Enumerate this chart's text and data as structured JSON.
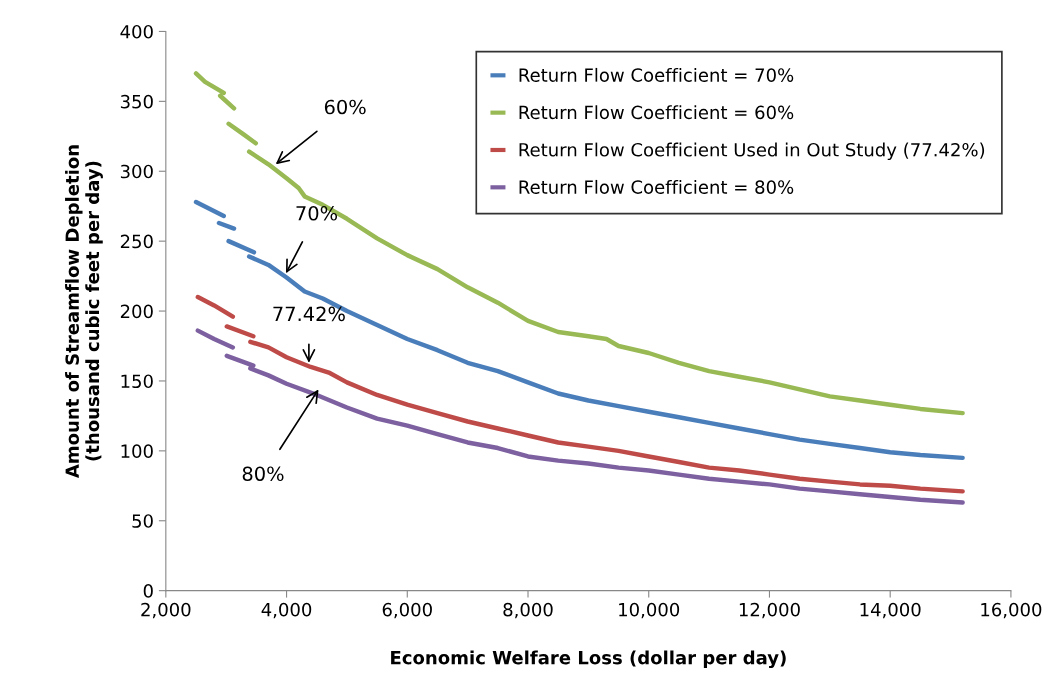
{
  "chart_data": {
    "type": "line",
    "xlabel": "Economic Welfare Loss (dollar per day)",
    "ylabel": "Amount of Streamflow Depletion\n(thousand cubic feet per day)",
    "xlim": [
      2000,
      16000
    ],
    "xticks": [
      {
        "value": 2000,
        "label": "2,000"
      },
      {
        "value": 4000,
        "label": "4,000"
      },
      {
        "value": 6000,
        "label": "6,000"
      },
      {
        "value": 8000,
        "label": "8,000"
      },
      {
        "value": 10000,
        "label": "10,000"
      },
      {
        "value": 12000,
        "label": "12,000"
      },
      {
        "value": 14000,
        "label": "14,000"
      },
      {
        "value": 16000,
        "label": "16,000"
      }
    ],
    "ylim": [
      0,
      400
    ],
    "yticks": [
      0,
      50,
      100,
      150,
      200,
      250,
      300,
      350,
      400
    ],
    "grid": false,
    "legend": "top right",
    "line_style": "solid",
    "marker": "none",
    "series": [
      {
        "name": "Return Flow Coefficient = 70%",
        "color": "#4a7ebb",
        "x": [
          2500,
          2960,
          null,
          2880,
          3130,
          null,
          3040,
          3460,
          null,
          3380,
          3700,
          4000,
          4300,
          4600,
          5000,
          5500,
          6000,
          6500,
          7000,
          7500,
          8000,
          8500,
          9000,
          9500,
          10000,
          10500,
          11000,
          11500,
          12000,
          12500,
          13000,
          13500,
          14000,
          14500,
          15200
        ],
        "values": [
          278,
          268,
          null,
          263,
          259,
          null,
          250,
          242,
          null,
          239,
          233,
          224,
          214,
          209,
          200,
          190,
          180,
          172,
          163,
          157,
          149,
          141,
          136,
          132,
          128,
          124,
          120,
          116,
          112,
          108,
          105,
          102,
          99,
          97,
          95
        ]
      },
      {
        "name": "Return Flow Coefficient = 60%",
        "color": "#98b954",
        "x": [
          2500,
          2650,
          2960,
          null,
          2900,
          3130,
          null,
          3040,
          3300,
          3490,
          null,
          3380,
          3700,
          4000,
          4200,
          4300,
          4600,
          5000,
          5500,
          6000,
          6500,
          7000,
          7500,
          8000,
          8500,
          9000,
          9300,
          9500,
          10000,
          10500,
          11000,
          11500,
          12000,
          12500,
          13000,
          13500,
          14000,
          14500,
          15200
        ],
        "values": [
          370,
          364,
          356,
          null,
          354,
          345,
          null,
          334,
          326,
          320,
          null,
          314,
          305,
          295,
          288,
          282,
          276,
          266,
          252,
          240,
          230,
          217,
          206,
          193,
          185,
          182,
          180,
          175,
          170,
          163,
          157,
          153,
          149,
          144,
          139,
          136,
          133,
          130,
          127
        ]
      },
      {
        "name": "Return Flow Coefficient Used in Out Study (77.42%)",
        "color": "#be4b48",
        "x": [
          2530,
          2800,
          3110,
          null,
          3010,
          3450,
          null,
          3400,
          3700,
          4000,
          4400,
          4700,
          5000,
          5500,
          6000,
          6500,
          7000,
          7500,
          8000,
          8500,
          9000,
          9500,
          10000,
          10500,
          11000,
          11500,
          12000,
          12500,
          13000,
          13500,
          14000,
          14500,
          15200
        ],
        "values": [
          210,
          204,
          196,
          null,
          189,
          182,
          null,
          178,
          174,
          167,
          160,
          156,
          149,
          140,
          133,
          127,
          121,
          116,
          111,
          106,
          103,
          100,
          96,
          92,
          88,
          86,
          83,
          80,
          78,
          76,
          75,
          73,
          71
        ]
      },
      {
        "name": "Return Flow Coefficient = 80%",
        "color": "#7d60a0",
        "x": [
          2530,
          2800,
          3110,
          null,
          3010,
          3450,
          null,
          3400,
          3700,
          4000,
          4500,
          5000,
          5500,
          6000,
          6500,
          7000,
          7500,
          8000,
          8500,
          9000,
          9500,
          10000,
          10500,
          11000,
          11500,
          12000,
          12500,
          13000,
          13500,
          14000,
          14500,
          15200
        ],
        "values": [
          186,
          180,
          174,
          null,
          168,
          161,
          null,
          159,
          154,
          148,
          140,
          131,
          123,
          118,
          112,
          106,
          102,
          96,
          93,
          91,
          88,
          86,
          83,
          80,
          78,
          76,
          73,
          71,
          69,
          67,
          65,
          63
        ]
      }
    ],
    "annotations": [
      {
        "text": "60%",
        "x": 3820,
        "y": 305
      },
      {
        "text": "70%",
        "x": 3990,
        "y": 227
      },
      {
        "text": "77.42%",
        "x": 4370,
        "y": 163
      },
      {
        "text": "80%",
        "x": 4530,
        "y": 144
      }
    ]
  }
}
